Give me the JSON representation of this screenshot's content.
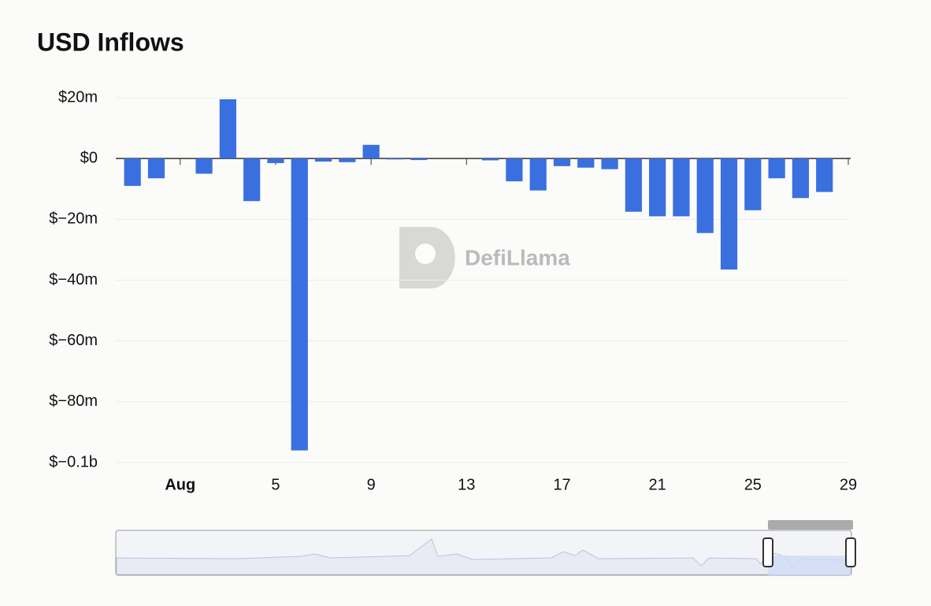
{
  "chart_data": {
    "type": "bar",
    "title": "USD Inflows",
    "watermark": "DefiLlama",
    "x": [
      -1,
      0,
      1,
      2,
      3,
      4,
      5,
      6,
      7,
      8,
      9,
      10,
      11,
      12,
      13,
      14,
      15,
      16,
      17,
      18,
      19,
      20,
      21,
      22,
      23,
      24,
      25,
      26,
      27,
      28
    ],
    "values": [
      -9,
      -6.5,
      0,
      -5,
      19.5,
      -14,
      -1.5,
      -96,
      -1,
      -1.2,
      4.5,
      -0.3,
      -0.5,
      0,
      0,
      -0.6,
      -7.5,
      -10.5,
      -2.5,
      -3,
      -3.5,
      -17.5,
      -19,
      -19,
      -24.5,
      -36.5,
      -17,
      -6.5,
      -13,
      -11
    ],
    "color": "#3a6fdf",
    "xlim": [
      -1.7,
      29
    ],
    "xticks": [
      {
        "value": 1,
        "label": "Aug"
      },
      5,
      9,
      13,
      17,
      21,
      25,
      29
    ],
    "ylim": [
      -100,
      20
    ],
    "yticks": [
      {
        "value": 20,
        "label": "$20m"
      },
      {
        "value": 0,
        "label": "$0"
      },
      {
        "value": -20,
        "label": "$−20m"
      },
      {
        "value": -40,
        "label": "$−40m"
      },
      {
        "value": -60,
        "label": "$−60m"
      },
      {
        "value": -80,
        "label": "$−80m"
      },
      {
        "value": -100,
        "label": "$−0.1b"
      }
    ],
    "grid": true
  }
}
